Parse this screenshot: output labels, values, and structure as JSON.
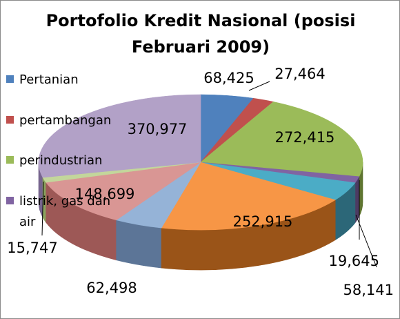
{
  "chart_data": {
    "type": "pie",
    "title_lines": [
      "Portofolio Kredit Nasional (posisi",
      "Februari 2009)"
    ],
    "legend_position": "left",
    "slices": [
      {
        "label": "Pertanian",
        "value": 68425,
        "display": "68,425",
        "color": "#4f81bd",
        "side": "#2c4d75"
      },
      {
        "label": "pertambangan",
        "value": 27464,
        "display": "27,464",
        "color": "#c0504d",
        "side": "#7f2f2d"
      },
      {
        "label": "perindustrian",
        "value": 272415,
        "display": "272,415",
        "color": "#9bbb59",
        "side": "#5f7530"
      },
      {
        "label": "listrik, gas dan air",
        "value": 19645,
        "display": "19,645",
        "color": "#8064a2",
        "side": "#4d3b62"
      },
      {
        "label": "",
        "value": 58141,
        "display": "58,141",
        "color": "#4bacc6",
        "side": "#2c6778"
      },
      {
        "label": "",
        "value": 252915,
        "display": "252,915",
        "color": "#f79646",
        "side": "#9a5418"
      },
      {
        "label": "",
        "value": 62498,
        "display": "62,498",
        "color": "#95b3d7",
        "side": "#5c7597"
      },
      {
        "label": "",
        "value": 148699,
        "display": "148,699",
        "color": "#d99694",
        "side": "#9d5856"
      },
      {
        "label": "",
        "value": 15747,
        "display": "15,747",
        "color": "#c3d69b",
        "side": "#8aa35e"
      },
      {
        "label": "",
        "value": 370977,
        "display": "370,977",
        "color": "#b2a1c7",
        "side": "#76648e"
      }
    ]
  }
}
